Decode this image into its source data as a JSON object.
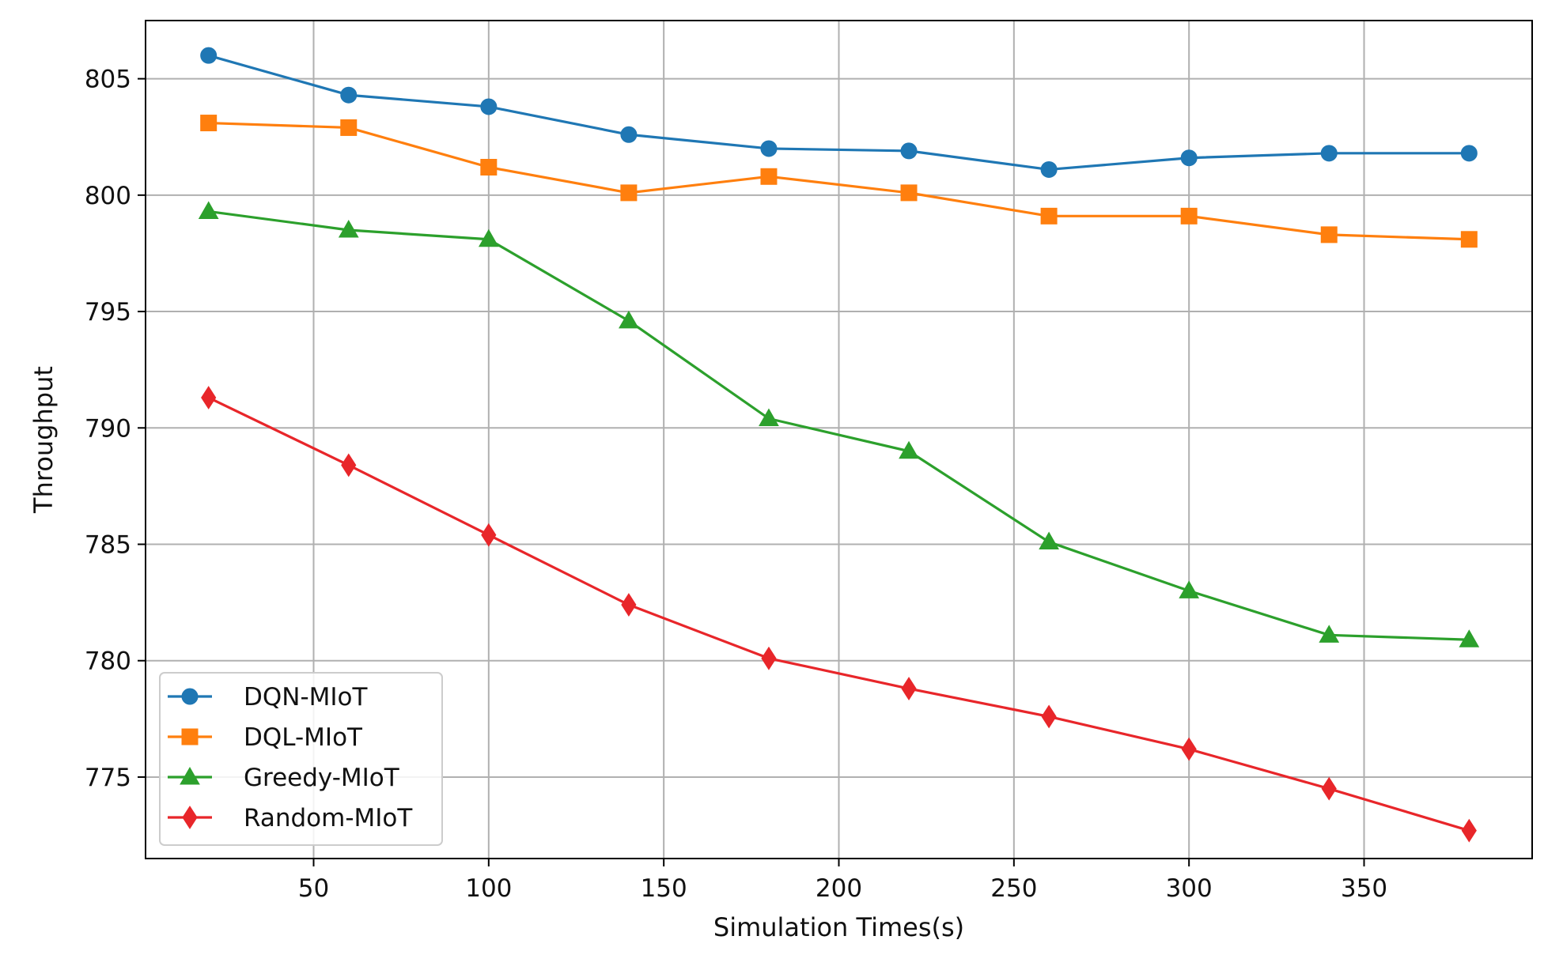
{
  "chart_data": {
    "type": "line",
    "title": "",
    "xlabel": "Simulation Times(s)",
    "ylabel": "Throughput",
    "xlim": [
      2,
      398
    ],
    "ylim": [
      771.5,
      807.5
    ],
    "x_ticks": [
      50,
      100,
      150,
      200,
      250,
      300,
      350
    ],
    "y_ticks": [
      775,
      780,
      785,
      790,
      795,
      800,
      805
    ],
    "grid": true,
    "legend_position": "lower-left",
    "x": [
      20,
      60,
      100,
      140,
      180,
      220,
      260,
      300,
      340,
      380
    ],
    "series": [
      {
        "name": "DQN-MIoT",
        "color": "#1f77b4",
        "marker": "circle",
        "values": [
          806.0,
          804.3,
          803.8,
          802.6,
          802.0,
          801.9,
          801.1,
          801.6,
          801.8,
          801.8
        ]
      },
      {
        "name": "DQL-MIoT",
        "color": "#ff7f0e",
        "marker": "square",
        "values": [
          803.1,
          802.9,
          801.2,
          800.1,
          800.8,
          800.1,
          799.1,
          799.1,
          798.3,
          798.1
        ]
      },
      {
        "name": "Greedy-MIoT",
        "color": "#2ca02c",
        "marker": "triangle",
        "values": [
          799.3,
          798.5,
          798.1,
          794.6,
          790.4,
          789.0,
          785.1,
          783.0,
          781.1,
          780.9
        ]
      },
      {
        "name": "Random-MIoT",
        "color": "#e8262a",
        "marker": "diamond",
        "values": [
          791.3,
          788.4,
          785.4,
          782.4,
          780.1,
          778.8,
          777.6,
          776.2,
          774.5,
          772.7
        ]
      }
    ]
  }
}
